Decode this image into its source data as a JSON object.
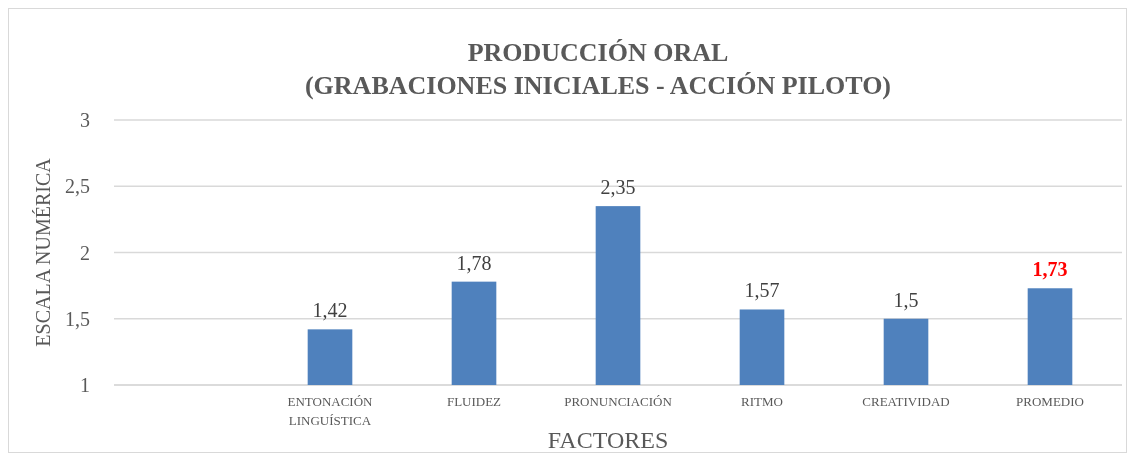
{
  "chart_data": {
    "type": "bar",
    "title": "PRODUCCIÓN ORAL\n(GRABACIONES INICIALES - ACCIÓN PILOTO)",
    "xlabel": "FACTORES",
    "ylabel": "ESCALA NUMÉRICA",
    "categories": [
      null,
      "ENTONACIÓN LINGUÍSTICA",
      "FLUIDEZ",
      "PRONUNCIACIÓN",
      "RITMO",
      "CREATIVIDAD",
      "PROMEDIO"
    ],
    "values": [
      null,
      1.42,
      1.78,
      2.35,
      1.57,
      1.5,
      1.73
    ],
    "value_labels": [
      null,
      "1,42",
      "1,78",
      "2,35",
      "1,57",
      "1,5",
      null
    ],
    "annotations": [
      {
        "text": "1,73",
        "x": "PROMEDIO",
        "y": 1.73
      }
    ],
    "color": "#4f81bd",
    "ylim": [
      1,
      3
    ],
    "yticks": [
      1,
      {
        "value": 1.5,
        "label": "1,5"
      },
      2,
      {
        "value": 2.5,
        "label": "2,5"
      },
      3
    ],
    "grid": "y"
  }
}
